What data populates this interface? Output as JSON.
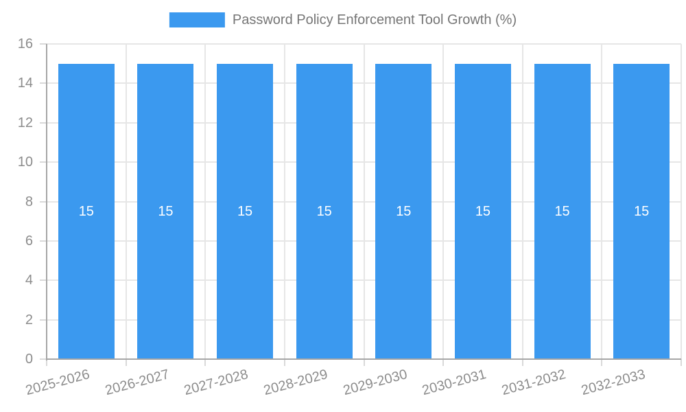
{
  "chart_data": {
    "type": "bar",
    "title": "Password Policy Enforcement Tool Growth (%)",
    "categories": [
      "2025-2026",
      "2026-2027",
      "2027-2028",
      "2028-2029",
      "2029-2030",
      "2030-2031",
      "2031-2032",
      "2032-2033"
    ],
    "values": [
      15,
      15,
      15,
      15,
      15,
      15,
      15,
      15
    ],
    "bar_value_labels": [
      "15",
      "15",
      "15",
      "15",
      "15",
      "15",
      "15",
      "15"
    ],
    "xlabel": "",
    "ylabel": "",
    "ylim": [
      0,
      16
    ],
    "yticks": [
      0,
      2,
      4,
      6,
      8,
      10,
      12,
      14,
      16
    ],
    "grid": "on",
    "legend_position": "top-center",
    "colors": {
      "bar": "#3B99EF",
      "bar_label": "#FFFFFF",
      "axis_line": "#A6A6A6",
      "grid_line": "#E6E6E6",
      "tick_mark": "#D9D9D9",
      "tick_label": "#8C8C8C",
      "legend_text": "#757575",
      "background": "#FFFFFF"
    }
  }
}
